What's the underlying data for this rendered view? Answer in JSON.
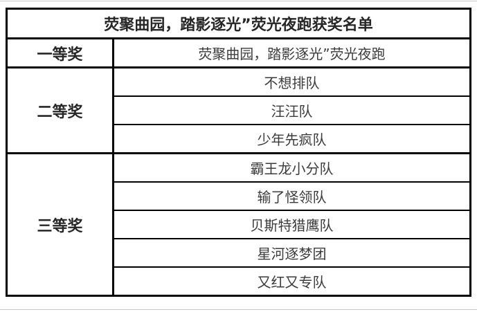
{
  "page": {
    "background": "#ffffff",
    "rule_color": "#c9c9c9",
    "border_color": "#000000",
    "title_text_color": "#262626",
    "body_text_color": "#3b3b3b"
  },
  "table": {
    "title": "荧聚曲园，踏影逐光”荧光夜跑获奖名单",
    "groups": [
      {
        "award": "一等奖",
        "teams": [
          "荧聚曲园，踏影逐光”荧光夜跑"
        ]
      },
      {
        "award": "二等奖",
        "teams": [
          "不想排队",
          "汪汪队",
          "少年先疯队"
        ]
      },
      {
        "award": "三等奖",
        "teams": [
          "霸王龙小分队",
          "输了怪领队",
          "贝斯特猎鹰队",
          "星河逐梦团",
          "又红又专队"
        ]
      }
    ]
  }
}
